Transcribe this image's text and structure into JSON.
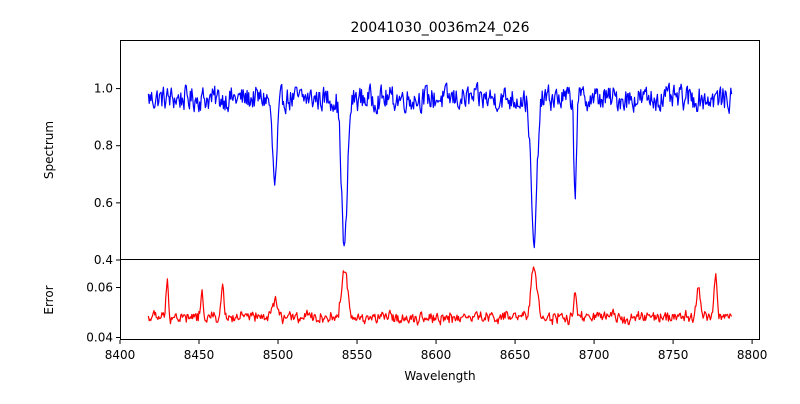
{
  "chart_data": {
    "type": "line",
    "title": "20041030_0036m24_026",
    "xlabel": "Wavelength",
    "xlim": [
      8400,
      8805
    ],
    "xticks": [
      8400,
      8450,
      8500,
      8550,
      8600,
      8650,
      8700,
      8750,
      8800
    ],
    "grid": false,
    "panels": [
      {
        "name": "spectrum",
        "ylabel": "Spectrum",
        "ylim": [
          0.4,
          1.17
        ],
        "yticks": [
          "0.4",
          "0.6",
          "0.8",
          "1.0"
        ],
        "series": [
          {
            "color": "#0000ff",
            "x_start": 8418,
            "x_end": 8787,
            "base": 0.965,
            "noise": 0.06,
            "features": [
              {
                "center": 8498,
                "depth": 0.3,
                "width": 1.5
              },
              {
                "center": 8542,
                "depth": 0.53,
                "width": 1.8
              },
              {
                "center": 8662,
                "depth": 0.52,
                "width": 1.8
              },
              {
                "center": 8688,
                "depth": 0.32,
                "width": 0.8
              }
            ],
            "values_summary": {
              "min": 0.43,
              "max": 1.13
            }
          }
        ]
      },
      {
        "name": "error",
        "ylabel": "Error",
        "ylim": [
          0.039,
          0.071
        ],
        "yticks": [
          "0.04",
          "0.06"
        ],
        "series": [
          {
            "color": "#ff0000",
            "x_start": 8418,
            "x_end": 8787,
            "base": 0.048,
            "noise": 0.003,
            "features": [
              {
                "center": 8430,
                "height": 0.014,
                "width": 0.8
              },
              {
                "center": 8452,
                "height": 0.009,
                "width": 0.8
              },
              {
                "center": 8465,
                "height": 0.013,
                "width": 0.8
              },
              {
                "center": 8498,
                "height": 0.007,
                "width": 1.5
              },
              {
                "center": 8542,
                "height": 0.02,
                "width": 1.8
              },
              {
                "center": 8662,
                "height": 0.021,
                "width": 1.8
              },
              {
                "center": 8688,
                "height": 0.009,
                "width": 0.8
              },
              {
                "center": 8766,
                "height": 0.012,
                "width": 1.2
              },
              {
                "center": 8777,
                "height": 0.016,
                "width": 1.0
              }
            ],
            "values_summary": {
              "min": 0.041,
              "max": 0.069
            }
          }
        ]
      }
    ]
  }
}
